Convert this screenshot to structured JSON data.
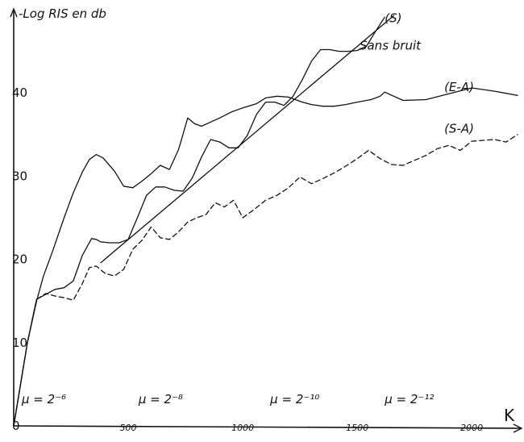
{
  "chart_data": {
    "type": "line",
    "ylabel": "-Log RIS en db",
    "xlabel": "K",
    "xlim": [
      0,
      2200
    ],
    "ylim": [
      0,
      50
    ],
    "x_ticks": [
      {
        "value": 500,
        "label": "500"
      },
      {
        "value": 1000,
        "label": "1000"
      },
      {
        "value": 1500,
        "label": "1500"
      },
      {
        "value": 2000,
        "label": "2000"
      }
    ],
    "y_ticks": [
      {
        "value": 0,
        "label": "0"
      },
      {
        "value": 10,
        "label": "10"
      },
      {
        "value": 20,
        "label": "20"
      },
      {
        "value": 30,
        "label": "30"
      },
      {
        "value": 40,
        "label": "40"
      }
    ],
    "annotations": [
      {
        "text": "(S)",
        "x": 1620,
        "y": 48.5
      },
      {
        "text": "Sans bruit",
        "x": 1510,
        "y": 45.2
      },
      {
        "text": "(E-A)",
        "x": 1880,
        "y": 40.2
      },
      {
        "text": "(S-A)",
        "x": 1880,
        "y": 35.2
      }
    ],
    "mu_labels": [
      {
        "text": "μ = 2⁻⁶",
        "x": 35
      },
      {
        "text": "μ = 2⁻⁸",
        "x": 545
      },
      {
        "text": "μ = 2⁻¹⁰",
        "x": 1120
      },
      {
        "text": "μ = 2⁻¹²",
        "x": 1620
      }
    ],
    "series": [
      {
        "style": "solid",
        "x": [
          0,
          30,
          60,
          100,
          130,
          170,
          220,
          260,
          300,
          330,
          360,
          390,
          440,
          480,
          520,
          560,
          600,
          640,
          680,
          720,
          760,
          790,
          820,
          860,
          900,
          950,
          1000,
          1060,
          1100,
          1150,
          1200,
          1260,
          1300,
          1350,
          1400,
          1450,
          1500,
          1560,
          1600,
          1620,
          1700,
          1800,
          1900,
          2000,
          2100,
          2200
        ],
        "y": [
          0,
          5,
          10,
          15,
          18,
          21,
          25,
          28,
          30.5,
          32,
          32.6,
          32.2,
          30.6,
          28.8,
          28.6,
          29.4,
          30.3,
          31.3,
          30.8,
          33.2,
          37,
          36.3,
          36,
          36.5,
          37,
          37.7,
          38.2,
          38.7,
          39.4,
          39.6,
          39.5,
          38.9,
          38.6,
          38.4,
          38.4,
          38.6,
          38.9,
          39.2,
          39.6,
          40.1,
          39.1,
          39.2,
          39.9,
          40.6,
          40.2,
          39.7
        ]
      },
      {
        "style": "solid",
        "x": [
          0,
          30,
          60,
          100,
          140,
          180,
          220,
          260,
          300,
          340,
          360,
          380,
          420,
          460,
          500,
          540,
          580,
          620,
          660,
          700,
          740,
          780,
          820,
          860,
          900,
          940,
          980,
          1020,
          1060,
          1100,
          1140,
          1180,
          1220,
          1260,
          1300,
          1340,
          1380,
          1420,
          1460,
          1500,
          1540,
          1580,
          1620
        ],
        "y": [
          0,
          5,
          10,
          15.2,
          15.8,
          16.4,
          16.6,
          17.4,
          20.5,
          22.5,
          22.4,
          22.1,
          22,
          22,
          22.4,
          25,
          27.7,
          28.7,
          28.7,
          28.3,
          28.2,
          29.8,
          32.3,
          34.4,
          34.1,
          33.4,
          33.4,
          34.9,
          37.4,
          38.9,
          38.9,
          38.5,
          39.6,
          41.6,
          43.8,
          45.2,
          45.2,
          45,
          45,
          45.1,
          45.6,
          47.4,
          49.1
        ]
      },
      {
        "style": "dashed",
        "x": [
          0,
          30,
          60,
          100,
          140,
          180,
          220,
          260,
          300,
          330,
          360,
          400,
          440,
          480,
          520,
          560,
          600,
          640,
          680,
          720,
          760,
          800,
          840,
          880,
          920,
          960,
          1000,
          1050,
          1100,
          1150,
          1200,
          1250,
          1300,
          1350,
          1400,
          1450,
          1500,
          1550,
          1600,
          1650,
          1700,
          1750,
          1800,
          1850,
          1900,
          1950,
          2000,
          2050,
          2100,
          2150,
          2200
        ],
        "y": [
          0,
          5,
          10,
          15.2,
          15.9,
          15.6,
          15.4,
          15.1,
          17.1,
          19,
          19.2,
          18.3,
          18,
          18.8,
          21.2,
          22.3,
          23.9,
          22.6,
          22.4,
          23.3,
          24.5,
          25,
          25.4,
          26.8,
          26.3,
          27.1,
          25,
          26,
          27.1,
          27.7,
          28.6,
          29.9,
          29.1,
          29.7,
          30.4,
          31.2,
          32.1,
          33.1,
          32.1,
          31.4,
          31.3,
          31.9,
          32.5,
          33.3,
          33.7,
          33.1,
          34.2,
          34.3,
          34.4,
          34.1,
          35
        ]
      },
      {
        "style": "solid",
        "x": [
          380,
          1660
        ],
        "y": [
          19.6,
          49.3
        ]
      }
    ]
  }
}
